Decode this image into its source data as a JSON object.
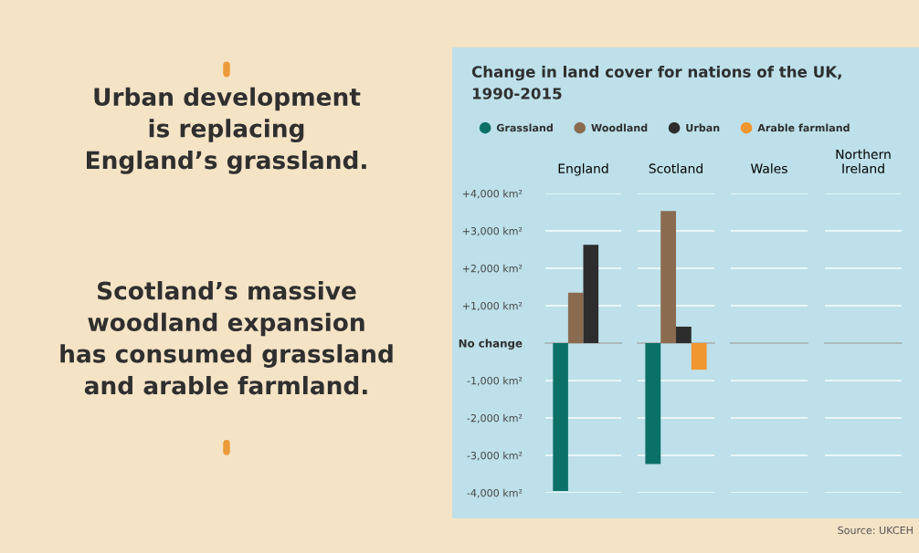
{
  "chart_data": [
    {
      "type": "other",
      "annotations": [
        "Urban development\nis replacing\nEngland’s grassland.",
        "Scotland’s massive\nwoodland expansion\nhas consumed grassland\nand arable farmland.",
        "Source: UKCEH"
      ]
    },
    {
      "type": "bar",
      "title": "Change in land cover for nations of the UK,\n1990-2015",
      "categories": [
        "England"
      ],
      "legend": "top",
      "grid": "y",
      "tick_labels": "xy",
      "ylim": [
        -4000,
        4000
      ],
      "yticks": [
        {
          "value": 4000,
          "label": "+4,000 km²"
        },
        {
          "value": 3000,
          "label": "+3,000 km²"
        },
        {
          "value": 2000,
          "label": "+2,000 km²"
        },
        {
          "value": 1000,
          "label": "+1,000 km²"
        },
        {
          "value": 0,
          "label": "No change"
        },
        {
          "value": -1000,
          "label": "-1,000 km²"
        },
        {
          "value": -2000,
          "label": "-2,000 km²"
        },
        {
          "value": -3000,
          "label": "-3,000 km²"
        },
        {
          "value": -4000,
          "label": "-4,000 km²"
        }
      ],
      "series": [
        {
          "name": "Grassland",
          "color": "#0b7167",
          "values": [
            -3950
          ]
        },
        {
          "name": "Woodland",
          "color": "#8b6b50",
          "values": [
            1350
          ]
        },
        {
          "name": "Urban",
          "color": "#2d2d2d",
          "values": [
            2630
          ]
        },
        {
          "name": "Arable farmland",
          "color": "#f0972f",
          "values": [
            0
          ]
        }
      ]
    },
    {
      "type": "bar",
      "categories": [
        "Scotland"
      ],
      "grid": "y",
      "tick_labels": "x",
      "ylim": [
        -4000,
        4000
      ],
      "series": [
        {
          "color": "#0b7167",
          "values": [
            -3230
          ]
        },
        {
          "color": "#8b6b50",
          "values": [
            3530
          ]
        },
        {
          "color": "#2d2d2d",
          "values": [
            440
          ]
        },
        {
          "color": "#f0972f",
          "values": [
            -710
          ]
        }
      ]
    },
    {
      "type": "bar",
      "categories": [
        "Wales"
      ],
      "grid": "y",
      "tick_labels": "x",
      "ylim": [
        -4000,
        4000
      ],
      "series": [
        {
          "color": "#0b7167",
          "values": [
            0
          ]
        },
        {
          "color": "#8b6b50",
          "values": [
            0
          ]
        },
        {
          "color": "#2d2d2d",
          "values": [
            0
          ]
        },
        {
          "color": "#f0972f",
          "values": [
            0
          ]
        }
      ]
    },
    {
      "type": "bar",
      "categories": [
        "Northern\nIreland"
      ],
      "grid": "y",
      "tick_labels": "x",
      "ylim": [
        -4000,
        4000
      ],
      "series": [
        {
          "color": "#0b7167",
          "values": [
            0
          ]
        },
        {
          "color": "#8b6b50",
          "values": [
            0
          ]
        },
        {
          "color": "#2d2d2d",
          "values": [
            0
          ]
        },
        {
          "color": "#f0972f",
          "values": [
            0
          ]
        }
      ]
    }
  ]
}
